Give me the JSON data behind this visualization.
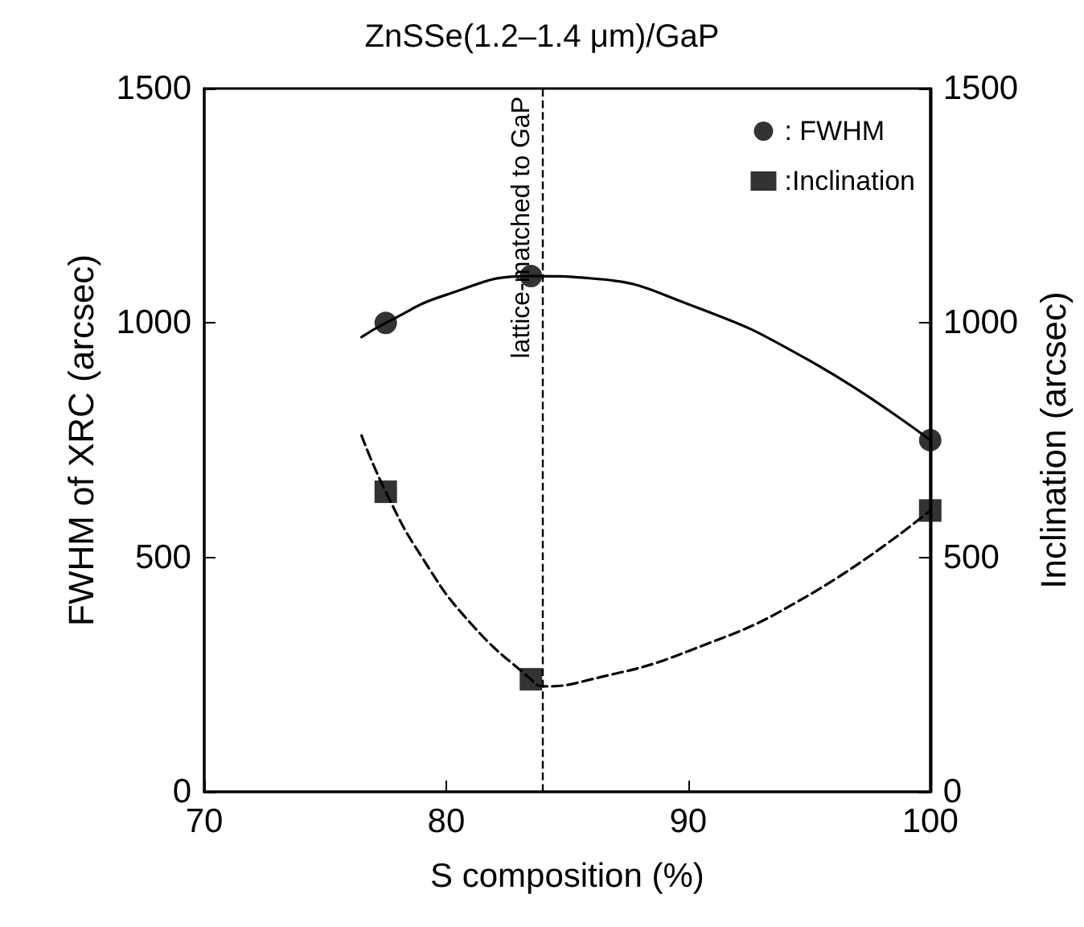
{
  "chart_data": {
    "type": "scatter",
    "title": "ZnSSe(1.2–1.4 μm)/GaP",
    "xlabel": "S composition (%)",
    "ylabel": "FWHM of XRC (arcsec)",
    "y2label": "Inclination (arcsec)",
    "xlim": [
      70,
      100
    ],
    "xticks": [
      70,
      80,
      90,
      100
    ],
    "ylim": [
      0,
      1500
    ],
    "yticks": [
      0,
      500,
      {
        "value": 1000,
        "label": "1000"
      },
      {
        "value": 1500,
        "label": "1500"
      }
    ],
    "y2lim": [
      0,
      1500
    ],
    "y2ticks": [
      0,
      500,
      {
        "value": 1000,
        "label": "1000"
      },
      {
        "value": 1500,
        "label": "1500"
      }
    ],
    "grid": false,
    "legend": "top right",
    "series": [
      {
        "name": ": FWHM",
        "marker": "circle",
        "color": "#000000",
        "x": [
          77.5,
          83.5,
          100
        ],
        "values": [
          1000,
          1100,
          750
        ]
      },
      {
        "name": ":Inclination",
        "marker": "square",
        "axis": "y2",
        "color": "#000000",
        "x": [
          77.5,
          83.5,
          100
        ],
        "values": [
          640,
          240,
          600
        ]
      },
      {
        "type": "line",
        "line_style": "solid",
        "color": "#000000",
        "x": [
          76.5,
          77.5,
          80,
          83.5,
          86,
          90,
          95,
          100
        ],
        "values": [
          970,
          1000,
          1060,
          1100,
          1095,
          1040,
          920,
          750
        ]
      },
      {
        "type": "line",
        "line_style": "dashed",
        "axis": "y2",
        "color": "#000000",
        "x": [
          76.5,
          77.5,
          79,
          81,
          83.5,
          84,
          86,
          90,
          95,
          100
        ],
        "values": [
          760,
          640,
          500,
          360,
          240,
          225,
          240,
          300,
          420,
          600
        ]
      }
    ],
    "ref_lines": [
      {
        "axis": "x",
        "value": 84,
        "label": "lattice-matched to GaP",
        "line_style": "dashed",
        "color": "#000000"
      }
    ]
  }
}
